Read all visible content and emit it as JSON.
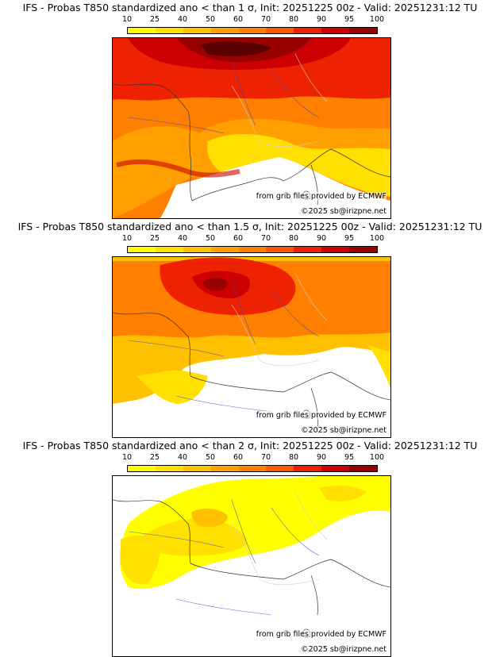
{
  "colorbar": {
    "ticks": [
      "10",
      "25",
      "40",
      "50",
      "60",
      "70",
      "80",
      "90",
      "95",
      "100"
    ],
    "colors": [
      "#ffff00",
      "#ffe000",
      "#ffc000",
      "#ffa000",
      "#ff8000",
      "#ff5a00",
      "#ee2200",
      "#cc0000",
      "#990000",
      "#5a0000"
    ]
  },
  "panels": [
    {
      "title": "IFS - Probas T850  standardized ano < than 1 σ, Init: 20251225 00z - Valid: 20251231:12 TU",
      "credit_source": "from grib files provided by ECMWF",
      "credit_copyright": "©2025 sb@irizpne.net"
    },
    {
      "title": "IFS - Probas T850  standardized ano < than 1.5 σ, Init: 20251225 00z - Valid: 20251231:12 TU",
      "credit_source": "from grib files provided by ECMWF",
      "credit_copyright": "©2025 sb@irizpne.net"
    },
    {
      "title": "IFS - Probas T850  standardized ano < than 2 σ, Init: 20251225 00z - Valid: 20251231:12 TU",
      "credit_source": "from grib files provided by ECMWF",
      "credit_copyright": "©2025 sb@irizpne.net"
    }
  ]
}
